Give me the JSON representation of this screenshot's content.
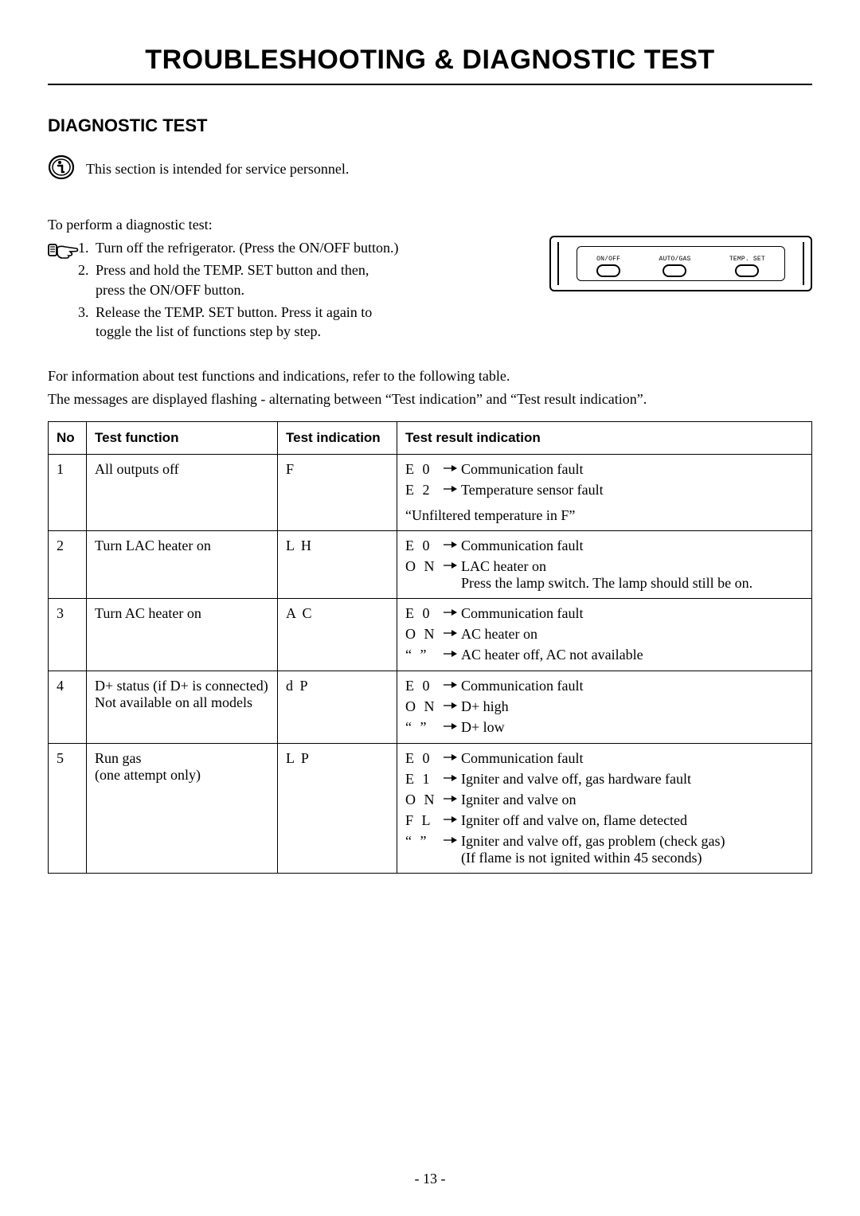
{
  "title": "TROUBLESHOOTING & DIAGNOSTIC TEST",
  "section": "DIAGNOSTIC TEST",
  "info_note": "This section is intended for service personnel.",
  "lead": "To perform a diagnostic test:",
  "steps": [
    "Turn off the refrigerator. (Press the ON/OFF button.)",
    "Press and hold the TEMP. SET button and then, press the ON/OFF button.",
    "Release the TEMP. SET button. Press it again to toggle the list of functions step by step."
  ],
  "panel_buttons": [
    "ON/OFF",
    "AUTO/GAS",
    "TEMP. SET"
  ],
  "para1": "For information about test functions and indications, refer to the following table.",
  "para2": "The messages are displayed flashing - alternating between “Test indication” and “Test result indication”.",
  "headers": {
    "no": "No",
    "func": "Test function",
    "ind": "Test indication",
    "res": "Test result indication"
  },
  "rows": [
    {
      "no": "1",
      "func": "All outputs off",
      "ind": "F",
      "results": [
        {
          "code": "E 0",
          "desc": "Communication fault"
        },
        {
          "code": "E 2",
          "desc": "Temperature sensor fault"
        }
      ],
      "note": "“Unfiltered temperature in F”"
    },
    {
      "no": "2",
      "func": "Turn LAC heater on",
      "ind": "L H",
      "results": [
        {
          "code": "E 0",
          "desc": "Communication fault"
        },
        {
          "code": "O N",
          "desc": "LAC heater on\nPress the lamp switch. The lamp should still be on."
        }
      ]
    },
    {
      "no": "3",
      "func": "Turn AC heater on",
      "ind": "A C",
      "results": [
        {
          "code": "E 0",
          "desc": "Communication fault"
        },
        {
          "code": "O N",
          "desc": "AC heater on"
        },
        {
          "code": "“    ”",
          "desc": "AC heater off, AC not available"
        }
      ]
    },
    {
      "no": "4",
      "func": "D+ status (if D+ is connected)\nNot available on all models",
      "ind": "d P",
      "results": [
        {
          "code": "E 0",
          "desc": "Communication fault"
        },
        {
          "code": "O N",
          "desc": "D+ high"
        },
        {
          "code": "“    ”",
          "desc": "D+ low"
        }
      ]
    },
    {
      "no": "5",
      "func": "Run gas\n(one attempt only)",
      "ind": "L P",
      "results": [
        {
          "code": "E 0",
          "desc": "Communication fault"
        },
        {
          "code": "E 1",
          "desc": "Igniter and valve off, gas hardware fault"
        },
        {
          "code": "O N",
          "desc": "Igniter and valve on"
        },
        {
          "code": "F L",
          "desc": "Igniter off and valve on, flame detected"
        },
        {
          "code": "“    ”",
          "desc": "Igniter and valve off, gas problem (check gas)\n(If flame is not ignited within 45 seconds)"
        }
      ]
    }
  ],
  "page_number": "- 13 -",
  "colors": {
    "text": "#000000",
    "bg": "#ffffff"
  }
}
